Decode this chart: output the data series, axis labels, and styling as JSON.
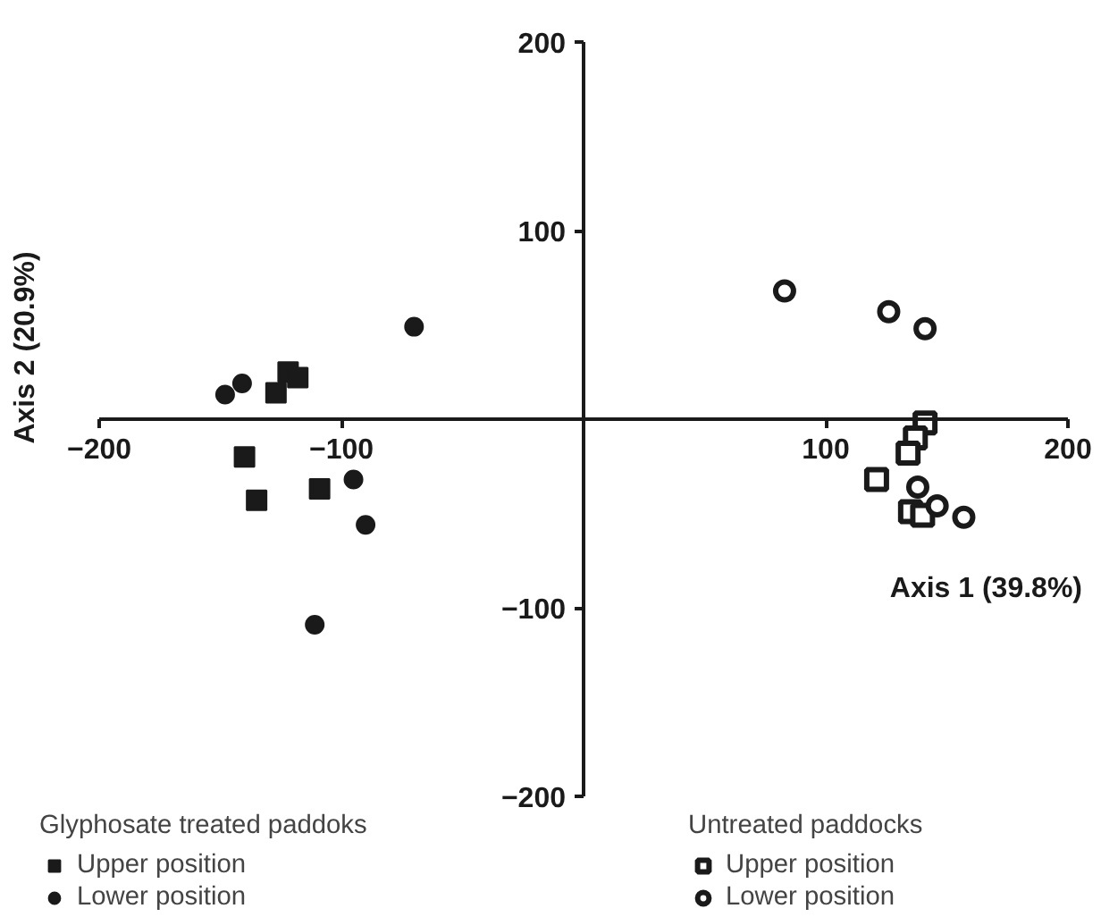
{
  "chart_data": {
    "type": "scatter",
    "xlabel": "Axis 1 (39.8%)",
    "ylabel": "Axis 2 (20.9%)",
    "xlim": [
      -200,
      200
    ],
    "ylim": [
      -200,
      200
    ],
    "xticks": [
      -200,
      -100,
      100,
      200
    ],
    "yticks": [
      -200,
      -100,
      100,
      200
    ],
    "grid": false,
    "legend": "bottom",
    "annotations": [
      "Glyphosate treated paddoks",
      "Untreated paddocks"
    ],
    "series": [
      {
        "name": "Upper position",
        "color": "#1a1a1a",
        "marker": "square",
        "x": [
          -122,
          -118,
          -127,
          -140,
          -135,
          -109
        ],
        "values": [
          25,
          22,
          14,
          -20,
          -43,
          -37
        ]
      },
      {
        "name": "Lower position",
        "color": "#1a1a1a",
        "marker": "circle",
        "x": [
          -70,
          -141,
          -148,
          -95,
          -90,
          -111
        ],
        "values": [
          49,
          19,
          13,
          -32,
          -56,
          -109
        ]
      },
      {
        "name": "Upper position",
        "color": "#1a1a1a",
        "marker": "square_open",
        "x": [
          141,
          137,
          134,
          121,
          135,
          140
        ],
        "values": [
          -2,
          -10,
          -18,
          -32,
          -49,
          -51
        ]
      },
      {
        "name": "Lower position",
        "color": "#1a1a1a",
        "marker": "circle_open",
        "x": [
          83,
          126,
          141,
          138,
          146,
          157
        ],
        "values": [
          68,
          57,
          48,
          -36,
          -46,
          -52
        ]
      }
    ]
  }
}
